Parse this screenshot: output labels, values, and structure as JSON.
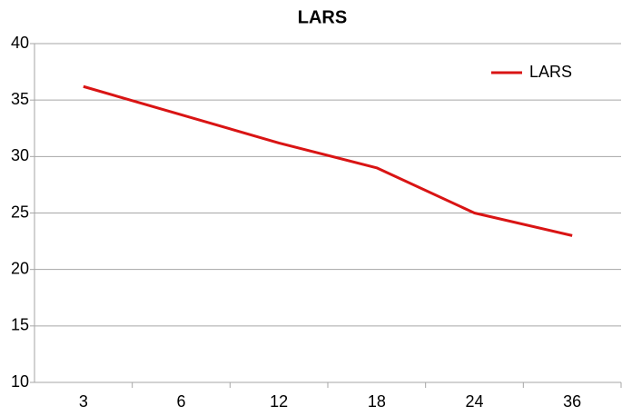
{
  "chart_data": {
    "type": "line",
    "title": "LARS",
    "categories": [
      "3",
      "6",
      "12",
      "18",
      "24",
      "36"
    ],
    "series": [
      {
        "name": "LARS",
        "color": "#d91414",
        "values": [
          36.2,
          33.7,
          31.2,
          29,
          25,
          23
        ]
      }
    ],
    "ylim": [
      10,
      40
    ],
    "yticks": [
      10,
      15,
      20,
      25,
      30,
      35,
      40
    ],
    "grid": true,
    "legend": "top-right"
  }
}
